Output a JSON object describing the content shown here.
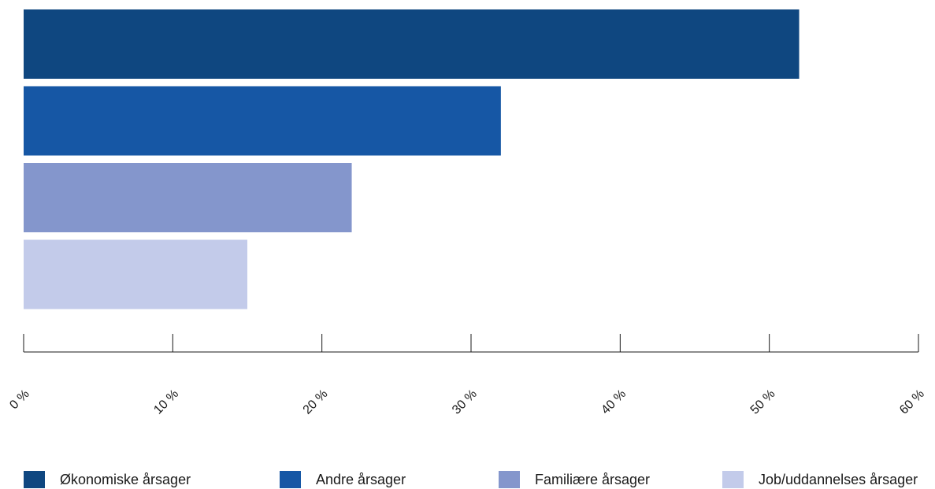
{
  "chart_data": {
    "type": "bar",
    "orientation": "horizontal",
    "series": [
      {
        "name": "Økonomiske årsager",
        "value": 52,
        "color": "#0f4780"
      },
      {
        "name": "Andre årsager",
        "value": 32,
        "color": "#1657a5"
      },
      {
        "name": "Familiære årsager",
        "value": 22,
        "color": "#8496cc"
      },
      {
        "name": "Job/uddannelses årsager",
        "value": 15,
        "color": "#c3cbea"
      }
    ],
    "xlim": [
      0,
      60
    ],
    "x_ticks": [
      "0 %",
      "10 %",
      "20 %",
      "30 %",
      "40 %",
      "50 %",
      "60 %"
    ],
    "legend_position": "bottom",
    "grid": false
  }
}
